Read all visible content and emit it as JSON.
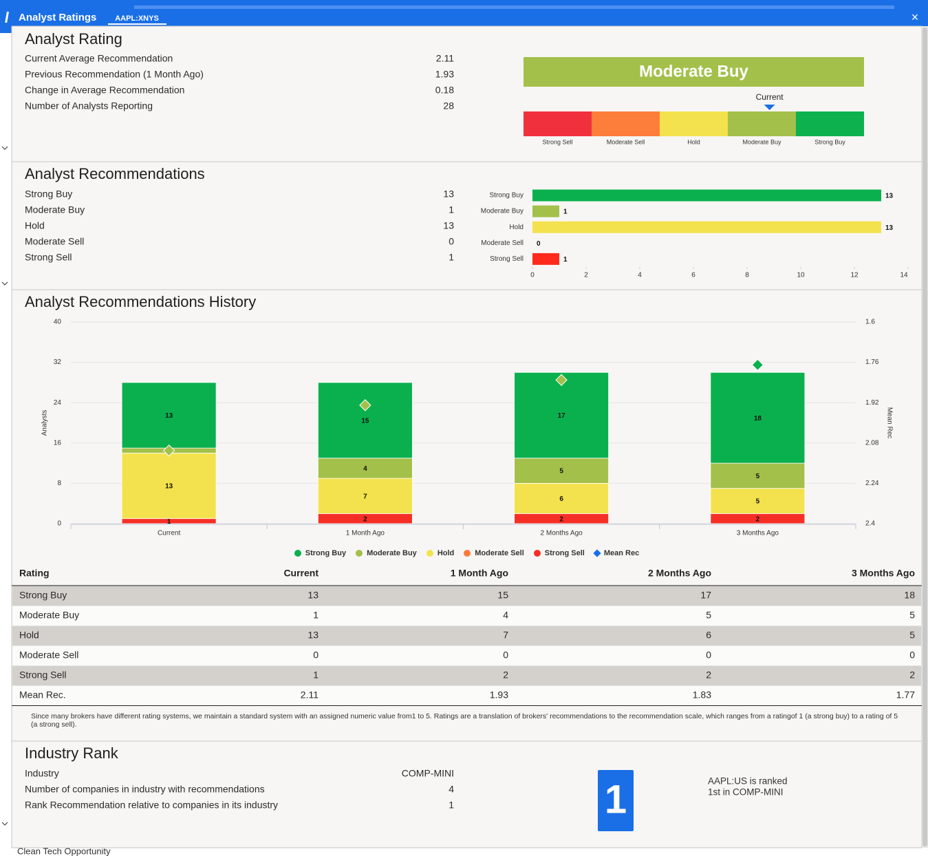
{
  "window": {
    "title": "Analyst Ratings",
    "tab": "AAPL:XNYS",
    "close": "×"
  },
  "background": {
    "item": "Clean Tech Opportunity"
  },
  "rating": {
    "title": "Analyst Rating",
    "rows": [
      {
        "label": "Current Average Recommendation",
        "value": 2.11
      },
      {
        "label": "Previous Recommendation (1 Month Ago)",
        "value": 1.93
      },
      {
        "label": "Change in Average Recommendation",
        "value": 0.18
      },
      {
        "label": "Number of Analysts Reporting",
        "value": 28
      }
    ],
    "gauge": {
      "label": "Moderate Buy",
      "banner_color": "#a3c04a",
      "marker_label": "Current",
      "marker_color": "#1a6fe6",
      "range": [
        5,
        1
      ],
      "segments": [
        {
          "name": "Strong Sell",
          "color": "#f1303d"
        },
        {
          "name": "Moderate Sell",
          "color": "#fd7d3a"
        },
        {
          "name": "Hold",
          "color": "#f3e24d"
        },
        {
          "name": "Moderate Buy",
          "color": "#a3c04a"
        },
        {
          "name": "Strong Buy",
          "color": "#0db24f"
        }
      ]
    }
  },
  "recommendations": {
    "title": "Analyst Recommendations",
    "rows": [
      {
        "label": "Strong Buy",
        "value": 13
      },
      {
        "label": "Moderate Buy",
        "value": 1
      },
      {
        "label": "Hold",
        "value": 13
      },
      {
        "label": "Moderate Sell",
        "value": 0
      },
      {
        "label": "Strong Sell",
        "value": 1
      }
    ],
    "chart": {
      "type": "bar",
      "orientation": "horizontal",
      "categories": [
        "Strong Buy",
        "Moderate Buy",
        "Hold",
        "Moderate Sell",
        "Strong Sell"
      ],
      "values": [
        13,
        1,
        13,
        0,
        1
      ],
      "colors": [
        "#0bb04e",
        "#a3c04a",
        "#f3e24d",
        "#fd7a3a",
        "#ff2a1a"
      ],
      "xlim": [
        0,
        14
      ],
      "xticks": [
        0,
        2,
        4,
        6,
        8,
        10,
        12,
        14
      ]
    }
  },
  "history": {
    "title": "Analyst Recommendations History",
    "chart": {
      "type": "stacked-bar",
      "categories": [
        "Current",
        "1 Month Ago",
        "2 Months Ago",
        "3 Months Ago"
      ],
      "y_label": "Analysts",
      "y2_label": "Mean Rec",
      "ylim": [
        0,
        40
      ],
      "yticks": [
        0,
        8,
        16,
        24,
        32,
        40
      ],
      "y2lim": [
        2.4,
        1.6
      ],
      "y2ticks": [
        2.4,
        2.24,
        2.08,
        1.92,
        1.76,
        1.6
      ],
      "grid": true,
      "series": [
        {
          "name": "Strong Buy",
          "color": "#0bb04e",
          "values": [
            13,
            15,
            17,
            18
          ]
        },
        {
          "name": "Moderate Buy",
          "color": "#a3c04a",
          "values": [
            1,
            4,
            5,
            5
          ]
        },
        {
          "name": "Hold",
          "color": "#f3e24d",
          "values": [
            13,
            7,
            6,
            5
          ]
        },
        {
          "name": "Moderate Sell",
          "color": "#fd7a3a",
          "values": [
            0,
            0,
            0,
            0
          ]
        },
        {
          "name": "Strong Sell",
          "color": "#f62f26",
          "values": [
            1,
            2,
            2,
            2
          ]
        },
        {
          "name": "Mean Rec",
          "color": "#1a6fe6",
          "axis": "y2",
          "values": [
            2.11,
            1.93,
            1.83,
            1.77
          ],
          "point_colors": [
            "#a3c04a",
            "#a3c04a",
            "#a3c04a",
            "#0bb04e"
          ]
        }
      ]
    },
    "table": {
      "header": [
        "Rating",
        "Current",
        "1 Month Ago",
        "2 Months Ago",
        "3 Months Ago"
      ],
      "rows": [
        [
          "Strong Buy",
          13,
          15,
          17,
          18
        ],
        [
          "Moderate Buy",
          1,
          4,
          5,
          5
        ],
        [
          "Hold",
          13,
          7,
          6,
          5
        ],
        [
          "Moderate Sell",
          0,
          0,
          0,
          0
        ],
        [
          "Strong Sell",
          1,
          2,
          2,
          2
        ],
        [
          "Mean Rec.",
          2.11,
          1.93,
          1.83,
          1.77
        ]
      ]
    },
    "note": "Since many brokers have different rating systems, we maintain a standard system with an assigned numeric value from1 to 5. Ratings are a translation of brokers' recommendations to the recommendation scale, which ranges from a ratingof 1 (a strong buy) to a rating of 5 (a strong sell)."
  },
  "industry": {
    "title": "Industry Rank",
    "rows": [
      {
        "label": "Industry",
        "value": "COMP-MINI"
      },
      {
        "label": "Number of companies in industry with recommendations",
        "value": 4
      },
      {
        "label": "Rank Recommendation relative to companies in its industry",
        "value": 1
      }
    ],
    "rank_badge": 1,
    "rank_text": [
      "AAPL:US is ranked",
      "1st in COMP-MINI"
    ]
  }
}
